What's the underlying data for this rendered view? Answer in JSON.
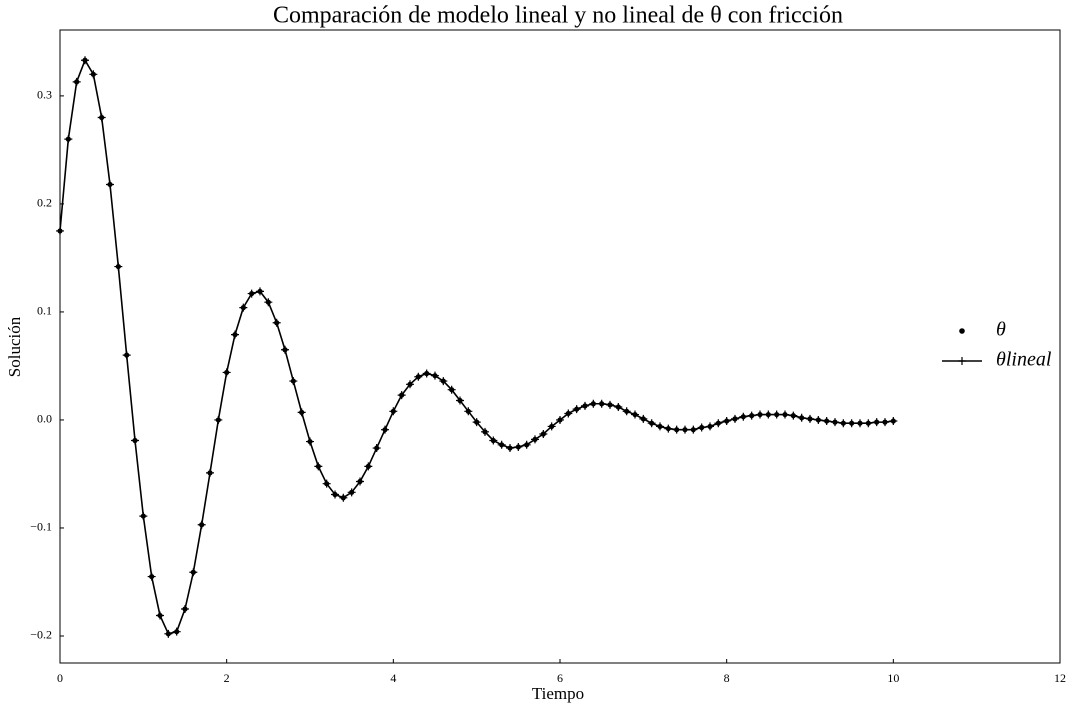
{
  "chart_data": {
    "type": "line",
    "title": "Comparación de modelo lineal y no lineal de θ con fricción",
    "x_label": "Tiempo",
    "y_label": "Solución",
    "xlim": [
      0,
      12
    ],
    "ylim": [
      -0.225,
      0.361
    ],
    "xticks": [
      0,
      2,
      4,
      6,
      8,
      10,
      12
    ],
    "yticks": [
      {
        "value": -0.2,
        "label": "−0.2"
      },
      {
        "value": -0.1,
        "label": "−0.1"
      },
      {
        "value": 0,
        "label": "0.0"
      },
      {
        "value": 0.1,
        "label": "0.1"
      },
      {
        "value": 0.2,
        "label": "0.2"
      },
      {
        "value": 0.3,
        "label": "0.3"
      }
    ],
    "legend": "right",
    "x": [
      0,
      0.1,
      0.2,
      0.3,
      0.4,
      0.5,
      0.6,
      0.7,
      0.8,
      0.9,
      1,
      1.1,
      1.2,
      1.3,
      1.4,
      1.5,
      1.6,
      1.7,
      1.8,
      1.9,
      2,
      2.1,
      2.2,
      2.3,
      2.4,
      2.5,
      2.6,
      2.7,
      2.8,
      2.9,
      3,
      3.1,
      3.2,
      3.3,
      3.4,
      3.5,
      3.6,
      3.7,
      3.8,
      3.9,
      4,
      4.1,
      4.2,
      4.3,
      4.4,
      4.5,
      4.6,
      4.7,
      4.8,
      4.9,
      5,
      5.1,
      5.2,
      5.3,
      5.4,
      5.5,
      5.6,
      5.7,
      5.8,
      5.9,
      6,
      6.1,
      6.2,
      6.3,
      6.4,
      6.5,
      6.6,
      6.7,
      6.8,
      6.9,
      7,
      7.1,
      7.2,
      7.3,
      7.4,
      7.5,
      7.6,
      7.7,
      7.8,
      7.9,
      8,
      8.1,
      8.2,
      8.3,
      8.4,
      8.5,
      8.6,
      8.7,
      8.8,
      8.9,
      9,
      9.1,
      9.2,
      9.3,
      9.4,
      9.5,
      9.6,
      9.7,
      9.8,
      9.9,
      10
    ],
    "series": [
      {
        "name": "θ",
        "color": "#000000",
        "marker": "dot",
        "values": [
          0.175,
          0.26,
          0.313,
          0.333,
          0.32,
          0.28,
          0.218,
          0.142,
          0.06,
          -0.019,
          -0.089,
          -0.145,
          -0.181,
          -0.198,
          -0.196,
          -0.175,
          -0.141,
          -0.097,
          -0.049,
          0,
          0.044,
          0.079,
          0.104,
          0.117,
          0.119,
          0.109,
          0.09,
          0.065,
          0.036,
          0.007,
          -0.02,
          -0.043,
          -0.059,
          -0.069,
          -0.072,
          -0.067,
          -0.057,
          -0.043,
          -0.026,
          -0.009,
          0.008,
          0.023,
          0.033,
          0.04,
          0.043,
          0.041,
          0.036,
          0.028,
          0.018,
          0.008,
          -0.002,
          -0.011,
          -0.019,
          -0.023,
          -0.026,
          -0.025,
          -0.023,
          -0.018,
          -0.013,
          -0.006,
          0,
          0.006,
          0.01,
          0.013,
          0.015,
          0.015,
          0.014,
          0.012,
          0.008,
          0.005,
          0.001,
          -0.003,
          -0.006,
          -0.008,
          -0.009,
          -0.009,
          -0.009,
          -0.007,
          -0.006,
          -0.003,
          -0.001,
          0.001,
          0.003,
          0.004,
          0.005,
          0.005,
          0.005,
          0.005,
          0.004,
          0.002,
          0.001,
          0,
          -0.001,
          -0.002,
          -0.003,
          -0.003,
          -0.003,
          -0.003,
          -0.002,
          -0.002,
          -0.001
        ]
      },
      {
        "name": "θlineal",
        "color": "#000000",
        "marker": "plus",
        "values": [
          0.175,
          0.26,
          0.313,
          0.333,
          0.32,
          0.28,
          0.218,
          0.142,
          0.06,
          -0.019,
          -0.089,
          -0.145,
          -0.181,
          -0.198,
          -0.196,
          -0.175,
          -0.141,
          -0.097,
          -0.049,
          0,
          0.044,
          0.079,
          0.104,
          0.117,
          0.119,
          0.109,
          0.09,
          0.065,
          0.036,
          0.007,
          -0.02,
          -0.043,
          -0.059,
          -0.069,
          -0.072,
          -0.067,
          -0.057,
          -0.043,
          -0.026,
          -0.009,
          0.008,
          0.023,
          0.033,
          0.04,
          0.043,
          0.041,
          0.036,
          0.028,
          0.018,
          0.008,
          -0.002,
          -0.011,
          -0.019,
          -0.023,
          -0.026,
          -0.025,
          -0.023,
          -0.018,
          -0.013,
          -0.006,
          0,
          0.006,
          0.01,
          0.013,
          0.015,
          0.015,
          0.014,
          0.012,
          0.008,
          0.005,
          0.001,
          -0.003,
          -0.006,
          -0.008,
          -0.009,
          -0.009,
          -0.009,
          -0.007,
          -0.006,
          -0.003,
          -0.001,
          0.001,
          0.003,
          0.004,
          0.005,
          0.005,
          0.005,
          0.005,
          0.004,
          0.002,
          0.001,
          0,
          -0.001,
          -0.002,
          -0.003,
          -0.003,
          -0.003,
          -0.003,
          -0.002,
          -0.002,
          -0.001
        ]
      }
    ]
  }
}
